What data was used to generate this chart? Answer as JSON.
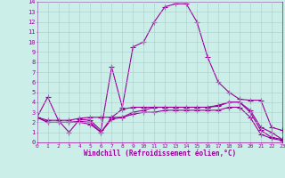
{
  "xlabel": "Windchill (Refroidissement éolien,°C)",
  "background_color": "#cceee8",
  "grid_color": "#aacccc",
  "line_color": "#990099",
  "xlim": [
    0,
    23
  ],
  "ylim": [
    0,
    14
  ],
  "xticks": [
    0,
    1,
    2,
    3,
    4,
    5,
    6,
    7,
    8,
    9,
    10,
    11,
    12,
    13,
    14,
    15,
    16,
    17,
    18,
    19,
    20,
    21,
    22,
    23
  ],
  "yticks": [
    0,
    1,
    2,
    3,
    4,
    5,
    6,
    7,
    8,
    9,
    10,
    11,
    12,
    13,
    14
  ],
  "line1": {
    "x": [
      0,
      1,
      2,
      3,
      4,
      5,
      6,
      7,
      8,
      9,
      10,
      11,
      12,
      13,
      14,
      15,
      16,
      17,
      18,
      19,
      20,
      21,
      22,
      23
    ],
    "y": [
      2.5,
      4.5,
      2.2,
      1.0,
      2.3,
      2.2,
      1.2,
      7.5,
      3.5,
      9.5,
      10.0,
      12.0,
      13.5,
      13.8,
      13.8,
      12.0,
      8.5,
      6.0,
      5.0,
      4.3,
      4.2,
      4.2,
      1.5,
      1.2
    ]
  },
  "line2": {
    "x": [
      0,
      1,
      2,
      3,
      4,
      5,
      6,
      7,
      8,
      9,
      10,
      11,
      12,
      13,
      14,
      15,
      16,
      17,
      18,
      19,
      20,
      21,
      22,
      23
    ],
    "y": [
      2.5,
      2.2,
      2.2,
      2.2,
      2.4,
      2.5,
      2.5,
      2.5,
      3.3,
      3.5,
      3.5,
      3.5,
      3.5,
      3.5,
      3.5,
      3.5,
      3.5,
      3.6,
      4.0,
      4.0,
      3.2,
      1.5,
      1.0,
      0.3
    ]
  },
  "line3": {
    "x": [
      0,
      1,
      2,
      3,
      4,
      5,
      6,
      7,
      8,
      9,
      10,
      11,
      12,
      13,
      14,
      15,
      16,
      17,
      18,
      19,
      20,
      21,
      22,
      23
    ],
    "y": [
      2.5,
      2.0,
      2.0,
      2.0,
      2.1,
      2.0,
      1.0,
      2.5,
      2.5,
      3.0,
      3.2,
      3.5,
      3.5,
      3.5,
      3.5,
      3.5,
      3.5,
      3.7,
      4.0,
      4.0,
      3.0,
      1.2,
      0.5,
      0.3
    ]
  },
  "line4": {
    "x": [
      0,
      1,
      2,
      3,
      4,
      5,
      6,
      7,
      8,
      9,
      10,
      11,
      12,
      13,
      14,
      15,
      16,
      17,
      18,
      19,
      20,
      21,
      22,
      23
    ],
    "y": [
      2.5,
      2.0,
      2.0,
      2.0,
      2.0,
      1.8,
      1.0,
      2.3,
      2.5,
      2.8,
      3.0,
      3.0,
      3.2,
      3.2,
      3.2,
      3.2,
      3.2,
      3.2,
      3.5,
      3.5,
      2.5,
      0.8,
      0.4,
      0.2
    ]
  }
}
